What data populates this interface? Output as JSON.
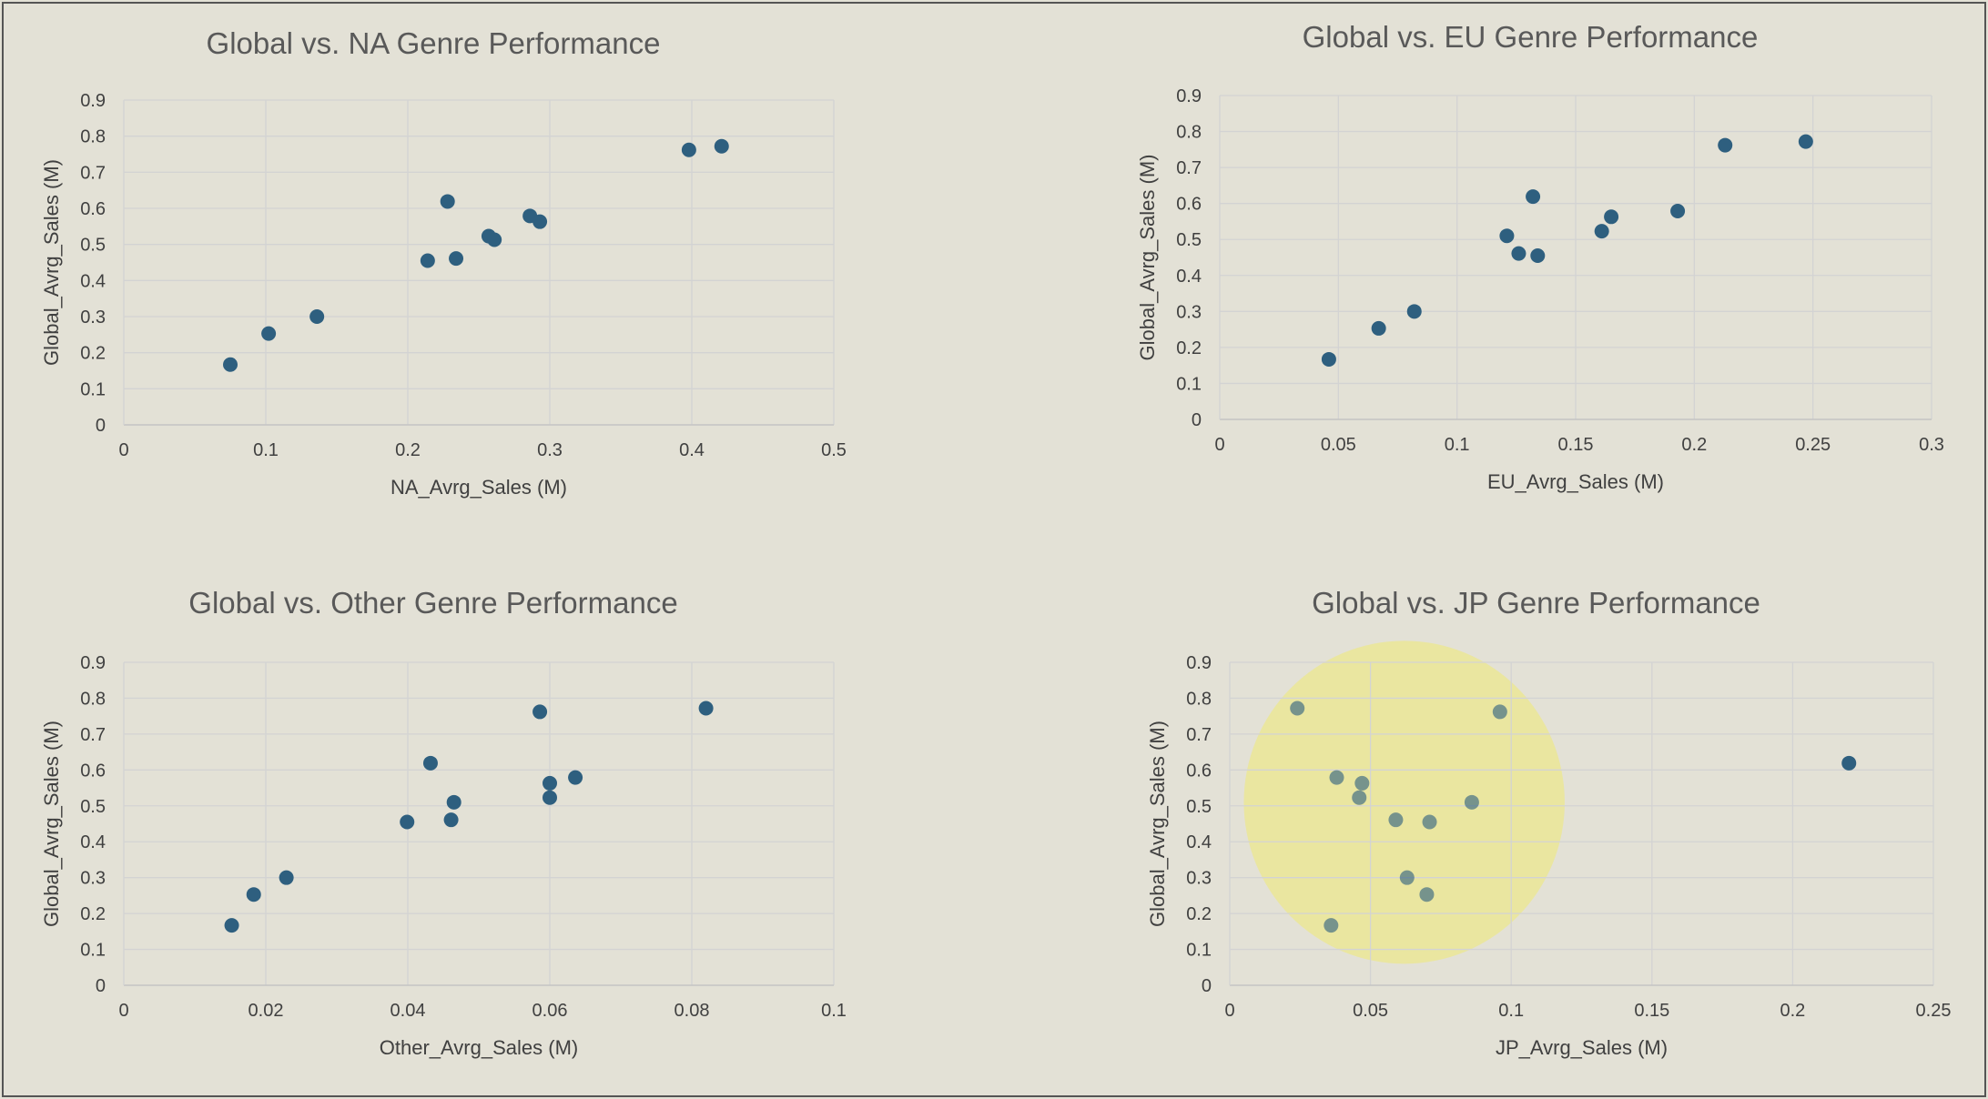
{
  "colors": {
    "background": "#e3e1d6",
    "marker": "#2e5f7f",
    "highlight": "#ebe696"
  },
  "chart_data": [
    {
      "type": "scatter",
      "title": "Global vs. NA Genre Performance",
      "xlabel": "NA_Avrg_Sales (M)",
      "ylabel": "Global_Avrg_Sales (M)",
      "xlim": [
        0,
        0.5
      ],
      "ylim": [
        0,
        0.9
      ],
      "x_ticks": [
        "0",
        "0.1",
        "0.2",
        "0.3",
        "0.4",
        "0.5"
      ],
      "y_ticks": [
        "0",
        "0.1",
        "0.2",
        "0.3",
        "0.4",
        "0.5",
        "0.6",
        "0.7",
        "0.8",
        "0.9"
      ],
      "grid": true,
      "points": [
        {
          "x": 0.075,
          "y": 0.167
        },
        {
          "x": 0.102,
          "y": 0.253
        },
        {
          "x": 0.136,
          "y": 0.3
        },
        {
          "x": 0.214,
          "y": 0.455
        },
        {
          "x": 0.228,
          "y": 0.619
        },
        {
          "x": 0.234,
          "y": 0.461
        },
        {
          "x": 0.257,
          "y": 0.523
        },
        {
          "x": 0.261,
          "y": 0.513
        },
        {
          "x": 0.286,
          "y": 0.579
        },
        {
          "x": 0.293,
          "y": 0.563
        },
        {
          "x": 0.398,
          "y": 0.762
        },
        {
          "x": 0.421,
          "y": 0.772
        }
      ]
    },
    {
      "type": "scatter",
      "title": "Global vs. EU Genre Performance",
      "xlabel": "EU_Avrg_Sales (M)",
      "ylabel": "Global_Avrg_Sales (M)",
      "xlim": [
        0,
        0.3
      ],
      "ylim": [
        0,
        0.9
      ],
      "x_ticks": [
        "0",
        "0.05",
        "0.1",
        "0.15",
        "0.2",
        "0.25",
        "0.3"
      ],
      "y_ticks": [
        "0",
        "0.1",
        "0.2",
        "0.3",
        "0.4",
        "0.5",
        "0.6",
        "0.7",
        "0.8",
        "0.9"
      ],
      "grid": true,
      "points": [
        {
          "x": 0.046,
          "y": 0.167
        },
        {
          "x": 0.067,
          "y": 0.253
        },
        {
          "x": 0.082,
          "y": 0.3
        },
        {
          "x": 0.121,
          "y": 0.51
        },
        {
          "x": 0.126,
          "y": 0.461
        },
        {
          "x": 0.132,
          "y": 0.619
        },
        {
          "x": 0.134,
          "y": 0.455
        },
        {
          "x": 0.161,
          "y": 0.523
        },
        {
          "x": 0.165,
          "y": 0.563
        },
        {
          "x": 0.193,
          "y": 0.579
        },
        {
          "x": 0.213,
          "y": 0.762
        },
        {
          "x": 0.247,
          "y": 0.772
        }
      ]
    },
    {
      "type": "scatter",
      "title": "Global vs. Other Genre Performance",
      "xlabel": "Other_Avrg_Sales (M)",
      "ylabel": "Global_Avrg_Sales (M)",
      "xlim": [
        0,
        0.1
      ],
      "ylim": [
        0,
        0.9
      ],
      "x_ticks": [
        "0",
        "0.02",
        "0.04",
        "0.06",
        "0.08",
        "0.1"
      ],
      "y_ticks": [
        "0",
        "0.1",
        "0.2",
        "0.3",
        "0.4",
        "0.5",
        "0.6",
        "0.7",
        "0.8",
        "0.9"
      ],
      "grid": true,
      "points": [
        {
          "x": 0.0152,
          "y": 0.167
        },
        {
          "x": 0.0183,
          "y": 0.253
        },
        {
          "x": 0.0229,
          "y": 0.3
        },
        {
          "x": 0.0399,
          "y": 0.455
        },
        {
          "x": 0.0432,
          "y": 0.619
        },
        {
          "x": 0.0461,
          "y": 0.461
        },
        {
          "x": 0.0465,
          "y": 0.51
        },
        {
          "x": 0.0586,
          "y": 0.762
        },
        {
          "x": 0.06,
          "y": 0.563
        },
        {
          "x": 0.06,
          "y": 0.523
        },
        {
          "x": 0.0636,
          "y": 0.579
        },
        {
          "x": 0.082,
          "y": 0.772
        }
      ]
    },
    {
      "type": "scatter",
      "title": "Global vs. JP Genre Performance",
      "xlabel": "JP_Avrg_Sales (M)",
      "ylabel": "Global_Avrg_Sales (M)",
      "xlim": [
        0,
        0.25
      ],
      "ylim": [
        0,
        0.9
      ],
      "x_ticks": [
        "0",
        "0.05",
        "0.1",
        "0.15",
        "0.2",
        "0.25"
      ],
      "y_ticks": [
        "0",
        "0.1",
        "0.2",
        "0.3",
        "0.4",
        "0.5",
        "0.6",
        "0.7",
        "0.8",
        "0.9"
      ],
      "grid": true,
      "highlight": {
        "center_x": 0.062,
        "center_y": 0.51,
        "radius_x": 0.057,
        "radius_y": 0.45
      },
      "points": [
        {
          "x": 0.024,
          "y": 0.772
        },
        {
          "x": 0.036,
          "y": 0.167
        },
        {
          "x": 0.038,
          "y": 0.579
        },
        {
          "x": 0.046,
          "y": 0.523
        },
        {
          "x": 0.047,
          "y": 0.563
        },
        {
          "x": 0.059,
          "y": 0.461
        },
        {
          "x": 0.063,
          "y": 0.3
        },
        {
          "x": 0.07,
          "y": 0.253
        },
        {
          "x": 0.071,
          "y": 0.455
        },
        {
          "x": 0.086,
          "y": 0.51
        },
        {
          "x": 0.096,
          "y": 0.762
        },
        {
          "x": 0.22,
          "y": 0.619
        }
      ]
    }
  ]
}
